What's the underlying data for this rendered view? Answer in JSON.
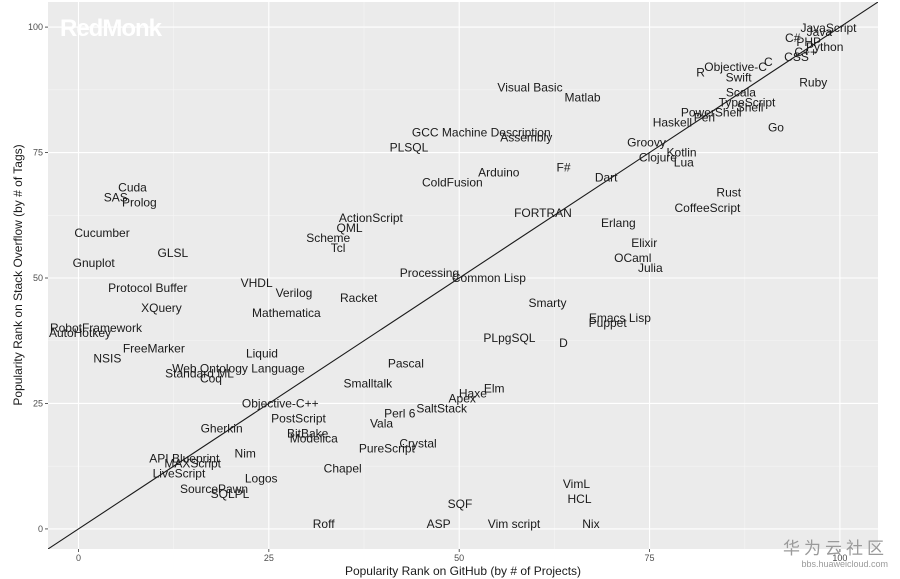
{
  "chart_data": {
    "type": "scatter",
    "xlabel": "Popularity Rank on GitHub (by # of Projects)",
    "ylabel": "Popularity Rank on Stack Overflow (by # of Tags)",
    "xlim": [
      -4,
      105
    ],
    "ylim": [
      -4,
      105
    ],
    "xticks": [
      0,
      25,
      50,
      75,
      100
    ],
    "yticks": [
      0,
      25,
      50,
      75,
      100
    ],
    "grid": true,
    "reference_line": {
      "x1": -4,
      "y1": -4,
      "x2": 105,
      "y2": 105
    },
    "points": [
      {
        "label": "JavaScript",
        "x": 98.5,
        "y": 99.8
      },
      {
        "label": "Java",
        "x": 97.3,
        "y": 99.0
      },
      {
        "label": "C#",
        "x": 93.8,
        "y": 97.8
      },
      {
        "label": "PHP",
        "x": 95.9,
        "y": 97.0
      },
      {
        "label": "Python",
        "x": 98.0,
        "y": 96.0
      },
      {
        "label": "C++",
        "x": 95.5,
        "y": 95.0
      },
      {
        "label": "CSS",
        "x": 94.3,
        "y": 94.0
      },
      {
        "label": "C",
        "x": 90.6,
        "y": 93.0
      },
      {
        "label": "R",
        "x": 81.7,
        "y": 91.0
      },
      {
        "label": "Objective-C",
        "x": 86.3,
        "y": 92.0
      },
      {
        "label": "Swift",
        "x": 86.7,
        "y": 90.0
      },
      {
        "label": "Ruby",
        "x": 96.5,
        "y": 89.0
      },
      {
        "label": "Visual Basic",
        "x": 59.3,
        "y": 88.0
      },
      {
        "label": "Matlab",
        "x": 66.2,
        "y": 86.0
      },
      {
        "label": "Scala",
        "x": 87.0,
        "y": 87.0
      },
      {
        "label": "TypeScript",
        "x": 87.8,
        "y": 85.0
      },
      {
        "label": "Shell",
        "x": 88.2,
        "y": 84.0
      },
      {
        "label": "PowerShell",
        "x": 83.1,
        "y": 83.0
      },
      {
        "label": "Perl",
        "x": 82.2,
        "y": 82.0
      },
      {
        "label": "Haskell",
        "x": 78.0,
        "y": 81.0
      },
      {
        "label": "Go",
        "x": 91.6,
        "y": 80.0
      },
      {
        "label": "GCC Machine Description",
        "x": 52.9,
        "y": 79.0
      },
      {
        "label": "Assembly",
        "x": 58.8,
        "y": 78.0
      },
      {
        "label": "PLSQL",
        "x": 43.4,
        "y": 76.0
      },
      {
        "label": "Groovy",
        "x": 74.6,
        "y": 77.0
      },
      {
        "label": "Kotlin",
        "x": 79.2,
        "y": 75.0
      },
      {
        "label": "Clojure",
        "x": 76.1,
        "y": 74.0
      },
      {
        "label": "Lua",
        "x": 79.5,
        "y": 73.0
      },
      {
        "label": "F#",
        "x": 63.7,
        "y": 72.0
      },
      {
        "label": "Arduino",
        "x": 55.2,
        "y": 71.0
      },
      {
        "label": "Dart",
        "x": 69.3,
        "y": 70.0
      },
      {
        "label": "ColdFusion",
        "x": 49.1,
        "y": 69.0
      },
      {
        "label": "Cuda",
        "x": 7.1,
        "y": 68.0
      },
      {
        "label": "Rust",
        "x": 85.4,
        "y": 67.0
      },
      {
        "label": "SAS",
        "x": 4.9,
        "y": 66.0
      },
      {
        "label": "Prolog",
        "x": 8.0,
        "y": 65.0
      },
      {
        "label": "CoffeeScript",
        "x": 82.6,
        "y": 64.0
      },
      {
        "label": "FORTRAN",
        "x": 61.0,
        "y": 63.0
      },
      {
        "label": "ActionScript",
        "x": 38.4,
        "y": 62.0
      },
      {
        "label": "Erlang",
        "x": 70.9,
        "y": 61.0
      },
      {
        "label": "QML",
        "x": 35.6,
        "y": 60.0
      },
      {
        "label": "Cucumber",
        "x": 3.1,
        "y": 59.0
      },
      {
        "label": "Scheme",
        "x": 32.8,
        "y": 58.0
      },
      {
        "label": "Elixir",
        "x": 74.3,
        "y": 57.0
      },
      {
        "label": "Tcl",
        "x": 34.1,
        "y": 56.0
      },
      {
        "label": "GLSL",
        "x": 12.4,
        "y": 55.0
      },
      {
        "label": "OCaml",
        "x": 72.8,
        "y": 54.0
      },
      {
        "label": "Gnuplot",
        "x": 2.0,
        "y": 53.0
      },
      {
        "label": "Julia",
        "x": 75.1,
        "y": 52.0
      },
      {
        "label": "Processing",
        "x": 46.1,
        "y": 51.0
      },
      {
        "label": "Common Lisp",
        "x": 53.9,
        "y": 50.0
      },
      {
        "label": "VHDL",
        "x": 23.4,
        "y": 49.0
      },
      {
        "label": "Protocol Buffer",
        "x": 9.1,
        "y": 48.0
      },
      {
        "label": "Verilog",
        "x": 28.3,
        "y": 47.0
      },
      {
        "label": "Racket",
        "x": 36.8,
        "y": 46.0
      },
      {
        "label": "Smarty",
        "x": 61.6,
        "y": 45.0
      },
      {
        "label": "XQuery",
        "x": 10.9,
        "y": 44.0
      },
      {
        "label": "Mathematica",
        "x": 27.3,
        "y": 43.0
      },
      {
        "label": "Emacs Lisp",
        "x": 71.1,
        "y": 42.0
      },
      {
        "label": "Puppet",
        "x": 69.5,
        "y": 41.0
      },
      {
        "label": "RobotFramework",
        "x": 2.3,
        "y": 40.0
      },
      {
        "label": "AutoHotkey",
        "x": 0.2,
        "y": 39.0
      },
      {
        "label": "PLpgSQL",
        "x": 56.6,
        "y": 38.0
      },
      {
        "label": "D",
        "x": 63.7,
        "y": 37.0
      },
      {
        "label": "FreeMarker",
        "x": 9.9,
        "y": 36.0
      },
      {
        "label": "Liquid",
        "x": 24.1,
        "y": 35.0
      },
      {
        "label": "NSIS",
        "x": 3.8,
        "y": 34.0
      },
      {
        "label": "Pascal",
        "x": 43.0,
        "y": 33.0
      },
      {
        "label": "Web Ontology Language",
        "x": 21.0,
        "y": 32.0
      },
      {
        "label": "Standard ML",
        "x": 15.9,
        "y": 31.0
      },
      {
        "label": "Coq",
        "x": 17.4,
        "y": 30.0
      },
      {
        "label": "Smalltalk",
        "x": 38.0,
        "y": 29.0
      },
      {
        "label": "Elm",
        "x": 54.6,
        "y": 28.0
      },
      {
        "label": "Haxe",
        "x": 51.8,
        "y": 27.0
      },
      {
        "label": "Apex",
        "x": 50.4,
        "y": 26.0
      },
      {
        "label": "Objective-C++",
        "x": 26.5,
        "y": 25.0
      },
      {
        "label": "SaltStack",
        "x": 47.7,
        "y": 24.0
      },
      {
        "label": "Perl 6",
        "x": 42.2,
        "y": 23.0
      },
      {
        "label": "PostScript",
        "x": 28.9,
        "y": 22.0
      },
      {
        "label": "Vala",
        "x": 39.8,
        "y": 21.0
      },
      {
        "label": "Gherkin",
        "x": 18.8,
        "y": 20.0
      },
      {
        "label": "BitBake",
        "x": 30.1,
        "y": 19.0
      },
      {
        "label": "Modelica",
        "x": 30.9,
        "y": 18.0
      },
      {
        "label": "Crystal",
        "x": 44.6,
        "y": 17.0
      },
      {
        "label": "PureScript",
        "x": 40.5,
        "y": 16.0
      },
      {
        "label": "Nim",
        "x": 21.9,
        "y": 15.0
      },
      {
        "label": "API Blueprint",
        "x": 13.9,
        "y": 14.0
      },
      {
        "label": "MAXScript",
        "x": 15.0,
        "y": 13.0
      },
      {
        "label": "Chapel",
        "x": 34.7,
        "y": 12.0
      },
      {
        "label": "LiveScript",
        "x": 13.2,
        "y": 11.0
      },
      {
        "label": "Logos",
        "x": 24.0,
        "y": 10.0
      },
      {
        "label": "VimL",
        "x": 65.4,
        "y": 9.0
      },
      {
        "label": "SourcePawn",
        "x": 17.8,
        "y": 8.0
      },
      {
        "label": "SQLPL",
        "x": 19.9,
        "y": 7.0
      },
      {
        "label": "HCL",
        "x": 65.8,
        "y": 6.0
      },
      {
        "label": "SQF",
        "x": 50.1,
        "y": 5.0
      },
      {
        "label": "Roff",
        "x": 32.2,
        "y": 1.0
      },
      {
        "label": "ASP",
        "x": 47.3,
        "y": 1.0
      },
      {
        "label": "Vim script",
        "x": 57.2,
        "y": 1.0
      },
      {
        "label": "Nix",
        "x": 67.3,
        "y": 1.0
      }
    ]
  },
  "branding": {
    "logo_text": "RedMonk"
  },
  "watermark": {
    "title": "华为云社区",
    "url": "bbs.huaweicloud.com"
  }
}
